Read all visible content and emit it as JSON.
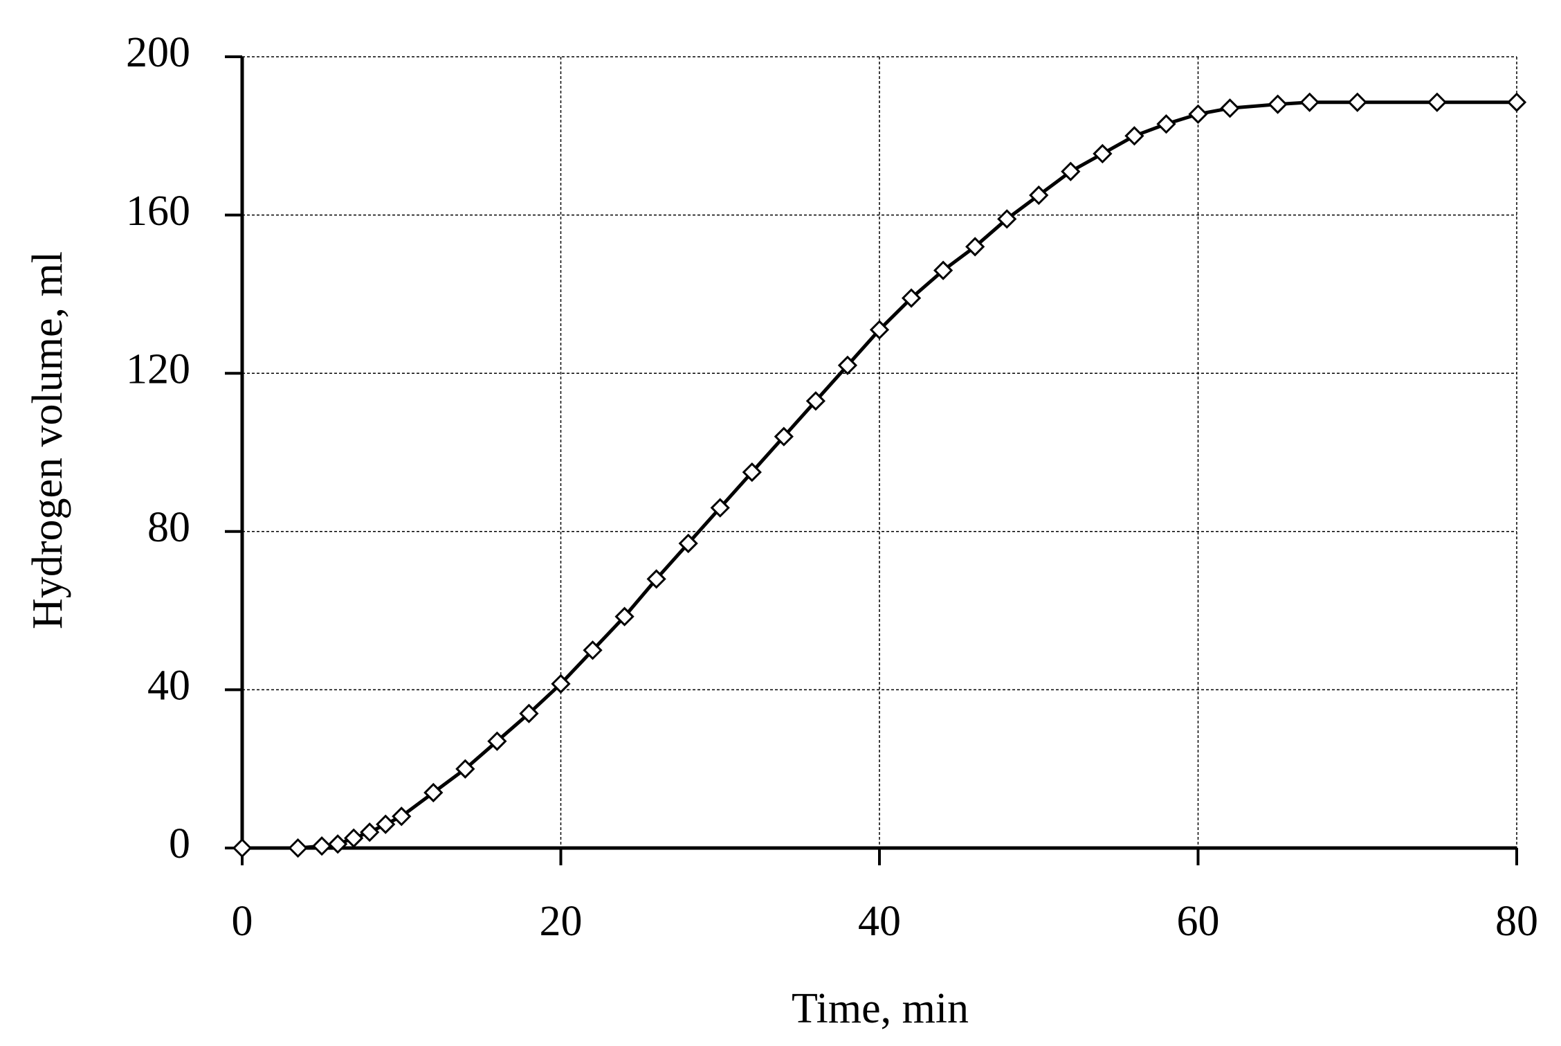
{
  "chart_data": {
    "type": "line",
    "xlabel": "Time, min",
    "ylabel": "Hydrogen volume, ml",
    "x": [
      0,
      3.5,
      5,
      6,
      7,
      8,
      9,
      10,
      12,
      14,
      16,
      18,
      20,
      22,
      24,
      26,
      28,
      30,
      32,
      34,
      36,
      38,
      40,
      42,
      44,
      46,
      48,
      50,
      52,
      54,
      56,
      58,
      60,
      62,
      65,
      67,
      70,
      75,
      80
    ],
    "values": [
      0,
      0,
      0.5,
      1,
      2.5,
      4,
      6,
      8,
      14,
      20,
      27,
      34,
      41.5,
      50,
      58.5,
      68,
      77,
      86,
      95,
      104,
      113,
      122,
      131,
      139,
      146,
      152,
      159,
      165,
      171,
      175.5,
      180,
      183,
      185.5,
      187,
      188,
      188.5,
      188.5,
      188.5,
      188.5
    ],
    "color": "#000000",
    "marker": "diamond",
    "xlim": [
      0,
      80
    ],
    "xticks": [
      0,
      20,
      40,
      60,
      80
    ],
    "ylim": [
      0,
      200
    ],
    "yticks": [
      0,
      40,
      80,
      120,
      160,
      200
    ],
    "grid": true
  }
}
